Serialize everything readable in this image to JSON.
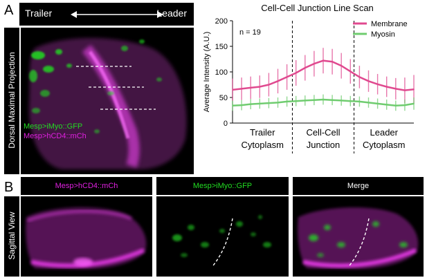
{
  "panels": {
    "a_letter": "A",
    "b_letter": "B"
  },
  "panel_a": {
    "vertical_label": "Dorsal Maximal Projection",
    "trailer_label": "Trailer",
    "leader_label": "Leader",
    "legend_gfp": "Mesp>iMyo::GFP",
    "legend_mch": "Mesp>hCD4::mCh",
    "colors": {
      "gfp": "#22dd22",
      "mch": "#e020e0"
    }
  },
  "panel_b": {
    "vertical_label": "Sagittal View",
    "headers": [
      "Mesp>hCD4::mCh",
      "Mesp>iMyo::GFP",
      "Merge"
    ],
    "header_colors": [
      "#e020e0",
      "#22dd22",
      "#ffffff"
    ]
  },
  "chart_data": {
    "type": "line",
    "title": "Cell-Cell Junction Line Scan",
    "ylabel": "Average Intensity (A.U.)",
    "ylim": [
      0,
      200
    ],
    "yticks": [
      0,
      50,
      100,
      150,
      200
    ],
    "xlim": [
      0,
      1
    ],
    "annotation": "n = 19",
    "regions": [
      {
        "label_line1": "Trailer",
        "label_line2": "Cytoplasm",
        "start": 0,
        "end": 0.33
      },
      {
        "label_line1": "Cell-Cell",
        "label_line2": "Junction",
        "start": 0.33,
        "end": 0.67
      },
      {
        "label_line1": "Leader",
        "label_line2": "Cytoplasm",
        "start": 0.67,
        "end": 1.0
      }
    ],
    "dividers": [
      0.33,
      0.67
    ],
    "legend_position": "top-right",
    "series": [
      {
        "name": "Membrane",
        "color": "#e0498f",
        "x": [
          0.0,
          0.05,
          0.1,
          0.15,
          0.2,
          0.25,
          0.3,
          0.35,
          0.4,
          0.45,
          0.5,
          0.55,
          0.6,
          0.65,
          0.7,
          0.75,
          0.8,
          0.85,
          0.9,
          0.95,
          1.0
        ],
        "values": [
          65,
          67,
          69,
          71,
          75,
          82,
          90,
          98,
          108,
          116,
          122,
          120,
          112,
          101,
          90,
          82,
          76,
          71,
          67,
          64,
          66
        ],
        "error": [
          22,
          22,
          22,
          22,
          23,
          24,
          25,
          25,
          25,
          25,
          25,
          25,
          25,
          24,
          22,
          21,
          20,
          20,
          21,
          25,
          28
        ]
      },
      {
        "name": "Myosin",
        "color": "#6fcc6f",
        "x": [
          0.0,
          0.05,
          0.1,
          0.15,
          0.2,
          0.25,
          0.3,
          0.35,
          0.4,
          0.45,
          0.5,
          0.55,
          0.6,
          0.65,
          0.7,
          0.75,
          0.8,
          0.85,
          0.9,
          0.95,
          1.0
        ],
        "values": [
          34,
          35,
          37,
          38,
          39,
          40,
          42,
          43,
          44,
          45,
          46,
          45,
          44,
          43,
          42,
          40,
          38,
          36,
          34,
          35,
          38
        ],
        "error": [
          10,
          10,
          10,
          10,
          10,
          10,
          10,
          10,
          10,
          10,
          10,
          10,
          10,
          10,
          10,
          10,
          10,
          10,
          10,
          11,
          12
        ]
      }
    ]
  }
}
